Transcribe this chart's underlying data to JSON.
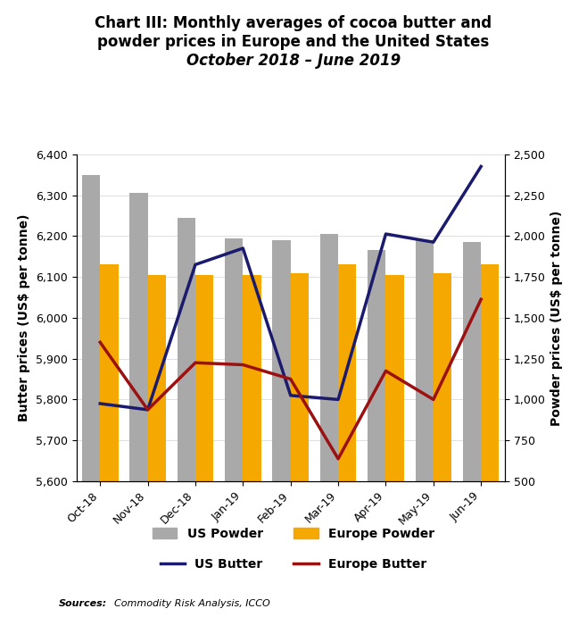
{
  "title_line1": "Chart III: Monthly averages of cocoa butter and",
  "title_line2": "powder prices in Europe and the United States",
  "title_line3": "October 2018 – June 2019",
  "months": [
    "Oct-18",
    "Nov-18",
    "Dec-18",
    "Jan-19",
    "Feb-19",
    "Mar-19",
    "Apr-19",
    "May-19",
    "Jun-19"
  ],
  "us_powder": [
    6350,
    6305,
    6245,
    6195,
    6190,
    6205,
    6165,
    6190,
    6185
  ],
  "europe_powder": [
    6130,
    6105,
    6105,
    6105,
    6110,
    6130,
    6105,
    6110,
    6130
  ],
  "us_butter": [
    5790,
    5775,
    6130,
    6170,
    5810,
    5800,
    6205,
    6185,
    6370
  ],
  "europe_butter": [
    5940,
    5775,
    5890,
    5885,
    5850,
    5655,
    5870,
    5800,
    6045
  ],
  "us_powder_color": "#a9a9a9",
  "europe_powder_color": "#f5a800",
  "us_butter_color": "#1a1a6e",
  "europe_butter_color": "#9b1111",
  "ylim_left": [
    5600,
    6400
  ],
  "ylim_right": [
    500,
    2500
  ],
  "yticks_left": [
    5600,
    5700,
    5800,
    5900,
    6000,
    6100,
    6200,
    6300,
    6400
  ],
  "yticks_right": [
    500,
    750,
    1000,
    1250,
    1500,
    1750,
    2000,
    2250,
    2500
  ],
  "ylabel_left": "Butter prices (US$ per tonne)",
  "ylabel_right": "Powder prices (US$ per tonne)",
  "source_bold": "Sources:",
  "source_italic": " Commodity Risk Analysis, ICCO",
  "bar_width": 0.38,
  "title_fontsize": 12,
  "subtitle_fontsize": 12,
  "axis_fontsize": 10,
  "tick_fontsize": 9
}
